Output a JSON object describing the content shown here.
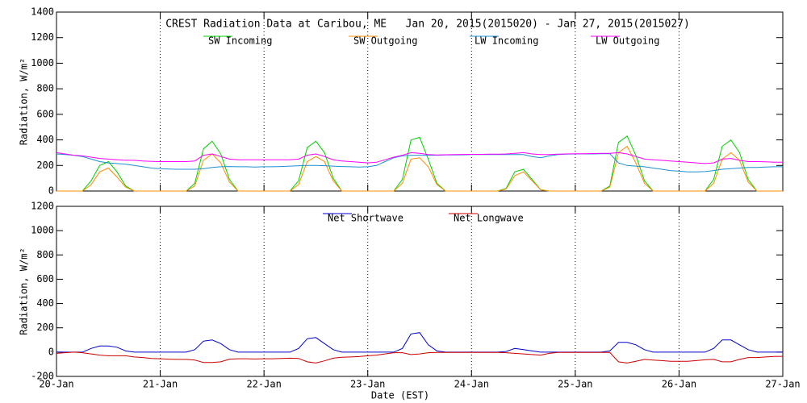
{
  "chart_data": [
    {
      "type": "line",
      "title": "CREST Radiation Data at Caribou, ME   Jan 20, 2015(2015020) - Jan 27, 2015(2015027)",
      "y_label": "Radiation, W/m²",
      "x": [
        0,
        2,
        4,
        6,
        8,
        10,
        12,
        14,
        16,
        18,
        20,
        22,
        24,
        26,
        28,
        30,
        32,
        34,
        36,
        38,
        40,
        42,
        44,
        46,
        48,
        50,
        52,
        54,
        56,
        58,
        60,
        62,
        64,
        66,
        68,
        70,
        72,
        74,
        76,
        78,
        80,
        82,
        84,
        86,
        88,
        90,
        92,
        94,
        96,
        98,
        100,
        102,
        104,
        106,
        108,
        110,
        112,
        114,
        116,
        118,
        120,
        122,
        124,
        126,
        128,
        130,
        132,
        134,
        136,
        138,
        140,
        142,
        144,
        146,
        148,
        150,
        152,
        154,
        156,
        158,
        160,
        162,
        164,
        166,
        168
      ],
      "xlim": [
        0,
        168
      ],
      "ylim": [
        0,
        1400
      ],
      "yticks": [
        0,
        200,
        400,
        600,
        800,
        1000,
        1200,
        1400
      ],
      "grid": true,
      "series": [
        {
          "name": "SW Incoming",
          "color": "#00d000",
          "values": [
            0,
            0,
            0,
            0,
            80,
            200,
            230,
            150,
            40,
            0,
            0,
            0,
            0,
            0,
            0,
            0,
            60,
            330,
            390,
            290,
            90,
            0,
            0,
            0,
            0,
            0,
            0,
            0,
            80,
            340,
            390,
            300,
            100,
            0,
            0,
            0,
            0,
            0,
            0,
            0,
            90,
            400,
            420,
            250,
            60,
            0,
            0,
            0,
            0,
            0,
            0,
            0,
            20,
            150,
            170,
            90,
            10,
            0,
            0,
            0,
            0,
            0,
            0,
            0,
            40,
            380,
            430,
            280,
            80,
            0,
            0,
            0,
            0,
            0,
            0,
            0,
            90,
            350,
            400,
            300,
            90,
            0,
            0,
            0,
            0
          ]
        },
        {
          "name": "SW Outgoing",
          "color": "#ff8c00",
          "values": [
            0,
            0,
            0,
            0,
            50,
            150,
            180,
            110,
            30,
            0,
            0,
            0,
            0,
            0,
            0,
            0,
            40,
            240,
            290,
            220,
            70,
            0,
            0,
            0,
            0,
            0,
            0,
            0,
            50,
            230,
            270,
            230,
            80,
            0,
            0,
            0,
            0,
            0,
            0,
            0,
            60,
            250,
            260,
            190,
            50,
            0,
            0,
            0,
            0,
            0,
            0,
            0,
            15,
            120,
            150,
            80,
            10,
            0,
            0,
            0,
            0,
            0,
            0,
            0,
            30,
            300,
            350,
            220,
            60,
            0,
            0,
            0,
            0,
            0,
            0,
            0,
            60,
            250,
            300,
            240,
            70,
            0,
            0,
            0,
            0
          ]
        },
        {
          "name": "LW Incoming",
          "color": "#1e8fd0",
          "values": [
            290,
            285,
            280,
            270,
            250,
            230,
            220,
            215,
            210,
            200,
            190,
            180,
            175,
            172,
            170,
            170,
            170,
            175,
            185,
            190,
            192,
            190,
            190,
            188,
            190,
            190,
            192,
            195,
            198,
            200,
            200,
            198,
            195,
            192,
            190,
            188,
            190,
            200,
            230,
            260,
            275,
            280,
            280,
            280,
            280,
            282,
            282,
            283,
            285,
            285,
            285,
            285,
            285,
            285,
            285,
            270,
            260,
            275,
            285,
            288,
            290,
            290,
            290,
            292,
            292,
            220,
            200,
            195,
            190,
            180,
            170,
            160,
            155,
            150,
            150,
            152,
            160,
            170,
            175,
            180,
            185,
            185,
            188,
            190,
            190
          ]
        },
        {
          "name": "LW Outgoing",
          "color": "#ff00ff",
          "values": [
            300,
            290,
            280,
            275,
            265,
            255,
            250,
            245,
            240,
            240,
            235,
            232,
            230,
            230,
            230,
            230,
            235,
            280,
            290,
            270,
            250,
            245,
            245,
            245,
            245,
            245,
            245,
            245,
            250,
            280,
            290,
            270,
            245,
            235,
            230,
            225,
            220,
            225,
            245,
            265,
            280,
            300,
            295,
            285,
            282,
            284,
            285,
            286,
            287,
            287,
            288,
            288,
            290,
            295,
            300,
            290,
            285,
            285,
            288,
            290,
            292,
            292,
            293,
            295,
            295,
            300,
            290,
            270,
            250,
            245,
            240,
            235,
            230,
            225,
            220,
            215,
            220,
            250,
            255,
            240,
            230,
            230,
            228,
            226,
            225
          ]
        }
      ]
    },
    {
      "type": "line",
      "y_label": "Radiation, W/m²",
      "x_label": "Date (EST)",
      "x": [
        0,
        2,
        4,
        6,
        8,
        10,
        12,
        14,
        16,
        18,
        20,
        22,
        24,
        26,
        28,
        30,
        32,
        34,
        36,
        38,
        40,
        42,
        44,
        46,
        48,
        50,
        52,
        54,
        56,
        58,
        60,
        62,
        64,
        66,
        68,
        70,
        72,
        74,
        76,
        78,
        80,
        82,
        84,
        86,
        88,
        90,
        92,
        94,
        96,
        98,
        100,
        102,
        104,
        106,
        108,
        110,
        112,
        114,
        116,
        118,
        120,
        122,
        124,
        126,
        128,
        130,
        132,
        134,
        136,
        138,
        140,
        142,
        144,
        146,
        148,
        150,
        152,
        154,
        156,
        158,
        160,
        162,
        164,
        166,
        168
      ],
      "xlim": [
        0,
        168
      ],
      "xticks": [
        {
          "value": 0,
          "label": "20-Jan"
        },
        {
          "value": 24,
          "label": "21-Jan"
        },
        {
          "value": 48,
          "label": "22-Jan"
        },
        {
          "value": 72,
          "label": "23-Jan"
        },
        {
          "value": 96,
          "label": "24-Jan"
        },
        {
          "value": 120,
          "label": "25-Jan"
        },
        {
          "value": 144,
          "label": "26-Jan"
        },
        {
          "value": 168,
          "label": "27-Jan"
        }
      ],
      "ylim": [
        -200,
        1200
      ],
      "yticks": [
        -200,
        0,
        200,
        400,
        600,
        800,
        1000,
        1200
      ],
      "grid": true,
      "series": [
        {
          "name": "Net Shortwave",
          "color": "#0000cc",
          "values": [
            0,
            0,
            0,
            0,
            30,
            50,
            50,
            40,
            10,
            0,
            0,
            0,
            0,
            0,
            0,
            0,
            20,
            90,
            100,
            70,
            20,
            0,
            0,
            0,
            0,
            0,
            0,
            0,
            30,
            110,
            120,
            70,
            20,
            0,
            0,
            0,
            0,
            0,
            0,
            0,
            30,
            150,
            160,
            60,
            10,
            0,
            0,
            0,
            0,
            0,
            0,
            0,
            5,
            30,
            20,
            10,
            0,
            0,
            0,
            0,
            0,
            0,
            0,
            0,
            10,
            80,
            80,
            60,
            20,
            0,
            0,
            0,
            0,
            0,
            0,
            0,
            30,
            100,
            100,
            60,
            20,
            0,
            0,
            0,
            0
          ]
        },
        {
          "name": "Net Longwave",
          "color": "#cc0000",
          "values": [
            -10,
            -5,
            0,
            -5,
            -15,
            -25,
            -30,
            -30,
            -30,
            -40,
            -45,
            -52,
            -55,
            -58,
            -60,
            -60,
            -65,
            -85,
            -85,
            -80,
            -58,
            -55,
            -55,
            -57,
            -55,
            -55,
            -53,
            -50,
            -52,
            -80,
            -90,
            -72,
            -50,
            -43,
            -40,
            -37,
            -30,
            -25,
            -15,
            -5,
            -5,
            -20,
            -15,
            -5,
            -2,
            -2,
            -3,
            -3,
            -2,
            -2,
            -3,
            -3,
            -5,
            -10,
            -15,
            -20,
            -25,
            -10,
            -3,
            -2,
            -2,
            -2,
            -3,
            -3,
            -3,
            -80,
            -90,
            -75,
            -60,
            -65,
            -70,
            -75,
            -75,
            -75,
            -70,
            -63,
            -60,
            -80,
            -80,
            -60,
            -45,
            -45,
            -40,
            -36,
            -35
          ]
        }
      ]
    }
  ]
}
